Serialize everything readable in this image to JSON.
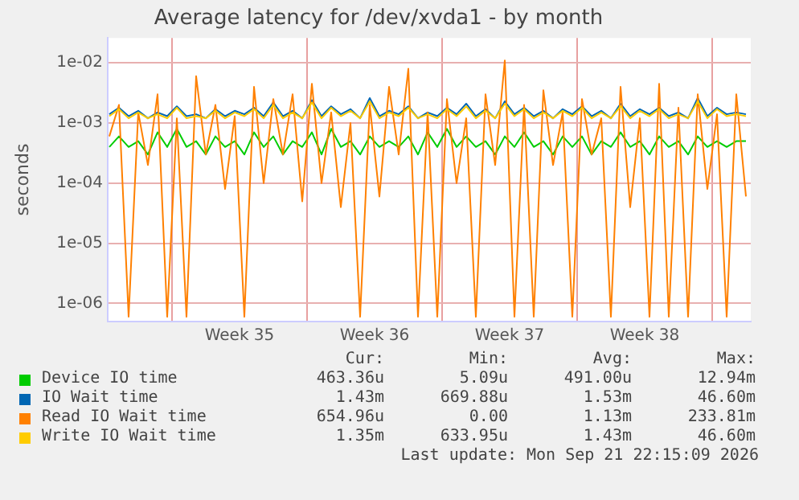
{
  "chart_data": {
    "type": "line",
    "title": "Average latency for /dev/xvda1 - by month",
    "ylabel": "seconds",
    "log": "y",
    "grid": true,
    "legend": "bottom",
    "marker": "none",
    "x": [
      "2026-08-20T18:00",
      "2026-08-21T06:00",
      "2026-08-21T18:00",
      "2026-08-22T06:00",
      "2026-08-22T18:00",
      "2026-08-23T06:00",
      "2026-08-23T18:00",
      "2026-08-24T06:00",
      "2026-08-24T18:00",
      "2026-08-25T06:00",
      "2026-08-25T18:00",
      "2026-08-26T06:00",
      "2026-08-26T18:00",
      "2026-08-27T06:00",
      "2026-08-27T18:00",
      "2026-08-28T06:00",
      "2026-08-28T18:00",
      "2026-08-29T06:00",
      "2026-08-29T18:00",
      "2026-08-30T06:00",
      "2026-08-30T18:00",
      "2026-08-31T06:00",
      "2026-08-31T18:00",
      "2026-09-01T06:00",
      "2026-09-01T18:00",
      "2026-09-02T06:00",
      "2026-09-02T18:00",
      "2026-09-03T06:00",
      "2026-09-03T18:00",
      "2026-09-04T06:00",
      "2026-09-04T18:00",
      "2026-09-05T06:00",
      "2026-09-05T18:00",
      "2026-09-06T06:00",
      "2026-09-06T18:00",
      "2026-09-07T06:00",
      "2026-09-07T18:00",
      "2026-09-08T06:00",
      "2026-09-08T18:00",
      "2026-09-09T06:00",
      "2026-09-09T18:00",
      "2026-09-10T06:00",
      "2026-09-10T18:00",
      "2026-09-11T06:00",
      "2026-09-11T18:00",
      "2026-09-12T06:00",
      "2026-09-12T18:00",
      "2026-09-13T06:00",
      "2026-09-13T18:00",
      "2026-09-14T06:00",
      "2026-09-14T18:00",
      "2026-09-15T06:00",
      "2026-09-15T18:00",
      "2026-09-16T06:00",
      "2026-09-16T18:00",
      "2026-09-17T06:00",
      "2026-09-17T18:00",
      "2026-09-18T06:00",
      "2026-09-18T18:00",
      "2026-09-19T06:00",
      "2026-09-19T18:00",
      "2026-09-20T06:00",
      "2026-09-20T18:00",
      "2026-09-21T06:00",
      "2026-09-21T18:00",
      "2026-09-22T06:00",
      "2026-09-22T18:00"
    ],
    "xlim": [
      "2026-08-20T16:00",
      "2026-09-23T00:00"
    ],
    "xticks": [
      {
        "value": "2026-08-24",
        "label": null
      },
      {
        "value": "2026-08-27T12:00",
        "label": "Week 35"
      },
      {
        "value": "2026-08-31",
        "label": null
      },
      {
        "value": "2026-09-03T12:00",
        "label": "Week 36"
      },
      {
        "value": "2026-09-07",
        "label": null
      },
      {
        "value": "2026-09-10T12:00",
        "label": "Week 37"
      },
      {
        "value": "2026-09-14",
        "label": null
      },
      {
        "value": "2026-09-17T12:00",
        "label": "Week 38"
      },
      {
        "value": "2026-09-21",
        "label": null
      }
    ],
    "ylim": [
      5e-07,
      0.026
    ],
    "yticks": [
      {
        "value": 1e-06,
        "label": "1e-06"
      },
      {
        "value": 1e-05,
        "label": "1e-05"
      },
      {
        "value": 0.0001,
        "label": "1e-04"
      },
      {
        "value": 0.001,
        "label": "1e-03"
      },
      {
        "value": 0.01,
        "label": "1e-02"
      }
    ],
    "series": [
      {
        "name": "Device IO time",
        "color": "#00cc00",
        "values": [
          0.0004,
          0.0006,
          0.0004,
          0.0005,
          0.0003,
          0.0007,
          0.0004,
          0.0008,
          0.0004,
          0.0005,
          0.0003,
          0.0006,
          0.0004,
          0.0005,
          0.0003,
          0.0007,
          0.0004,
          0.0006,
          0.0003,
          0.0005,
          0.0004,
          0.0007,
          0.0003,
          0.0008,
          0.0004,
          0.0005,
          0.0003,
          0.0006,
          0.0004,
          0.0005,
          0.0004,
          0.0006,
          0.0003,
          0.0007,
          0.0004,
          0.0008,
          0.0004,
          0.0006,
          0.0004,
          0.0005,
          0.0003,
          0.0006,
          0.0004,
          0.0007,
          0.0004,
          0.0005,
          0.0003,
          0.0006,
          0.0004,
          0.0006,
          0.0003,
          0.0005,
          0.0004,
          0.0007,
          0.0004,
          0.0005,
          0.0003,
          0.0006,
          0.0004,
          0.0005,
          0.0003,
          0.0006,
          0.0004,
          0.0005,
          0.0004,
          0.0005,
          0.0005
        ]
      },
      {
        "name": "IO Wait time",
        "color": "#0066b3",
        "values": [
          0.0014,
          0.0018,
          0.0013,
          0.0016,
          0.0012,
          0.0015,
          0.0013,
          0.0019,
          0.0013,
          0.0014,
          0.0012,
          0.0017,
          0.0013,
          0.0016,
          0.0014,
          0.0018,
          0.0013,
          0.0022,
          0.0013,
          0.0016,
          0.0012,
          0.0024,
          0.0013,
          0.0019,
          0.0014,
          0.0017,
          0.0012,
          0.0026,
          0.0013,
          0.0016,
          0.0014,
          0.0019,
          0.0012,
          0.0015,
          0.0013,
          0.0018,
          0.0014,
          0.0021,
          0.0013,
          0.0017,
          0.0012,
          0.0023,
          0.0014,
          0.0018,
          0.0013,
          0.0016,
          0.0012,
          0.0017,
          0.0014,
          0.0019,
          0.0013,
          0.0016,
          0.0012,
          0.0021,
          0.0013,
          0.0017,
          0.0014,
          0.0018,
          0.0013,
          0.0015,
          0.0012,
          0.0026,
          0.0013,
          0.0018,
          0.0014,
          0.0015,
          0.0014
        ]
      },
      {
        "name": "Read IO Wait time",
        "color": "#ff8000",
        "values": [
          0.0006,
          0.002,
          6e-07,
          0.0015,
          0.0002,
          0.003,
          6e-07,
          0.0012,
          6e-07,
          0.006,
          0.0003,
          0.002,
          8e-05,
          0.0013,
          6e-07,
          0.004,
          0.0001,
          0.0025,
          0.0003,
          0.003,
          5e-05,
          0.0045,
          0.0001,
          0.0015,
          4e-05,
          0.001,
          6e-07,
          0.002,
          6e-05,
          0.004,
          0.0003,
          0.008,
          6e-07,
          0.0015,
          6e-07,
          0.0025,
          0.0001,
          0.0012,
          6e-07,
          0.003,
          0.0002,
          0.011,
          6e-07,
          0.002,
          6e-07,
          0.0035,
          0.0002,
          0.0015,
          6e-07,
          0.0025,
          0.0003,
          0.0012,
          6e-07,
          0.004,
          4e-05,
          0.0012,
          6e-07,
          0.0045,
          6e-07,
          0.0018,
          6e-07,
          0.003,
          8e-05,
          0.0014,
          6e-07,
          0.003,
          6e-05
        ]
      },
      {
        "name": "Write IO Wait time",
        "color": "#ffcc00",
        "values": [
          0.0013,
          0.0017,
          0.0012,
          0.0015,
          0.0012,
          0.0014,
          0.0012,
          0.0018,
          0.0012,
          0.0013,
          0.0012,
          0.0016,
          0.0012,
          0.0015,
          0.0013,
          0.0017,
          0.0012,
          0.002,
          0.0012,
          0.0015,
          0.0012,
          0.0022,
          0.0012,
          0.0018,
          0.0013,
          0.0016,
          0.0012,
          0.0023,
          0.0012,
          0.0015,
          0.0013,
          0.0018,
          0.0012,
          0.0014,
          0.0012,
          0.0017,
          0.0013,
          0.0019,
          0.0012,
          0.0016,
          0.0012,
          0.0021,
          0.0013,
          0.0017,
          0.0012,
          0.0015,
          0.0012,
          0.0016,
          0.0013,
          0.0018,
          0.0012,
          0.0015,
          0.0012,
          0.0019,
          0.0012,
          0.0016,
          0.0013,
          0.0017,
          0.0012,
          0.0014,
          0.0012,
          0.0023,
          0.0012,
          0.0017,
          0.0013,
          0.0014,
          0.0013
        ]
      }
    ],
    "annotations": [
      "Cur:",
      "Min:",
      "Avg:",
      "Max:",
      "463.36u",
      "5.09u",
      "491.00u",
      "12.94m",
      "1.43m",
      "669.88u",
      "1.53m",
      "46.60m",
      "654.96u",
      "0.00",
      "1.13m",
      "233.81m",
      "1.35m",
      "633.95u",
      "1.43m",
      "46.60m",
      "Last update: Mon Sep 21 22:15:09 2026"
    ]
  }
}
